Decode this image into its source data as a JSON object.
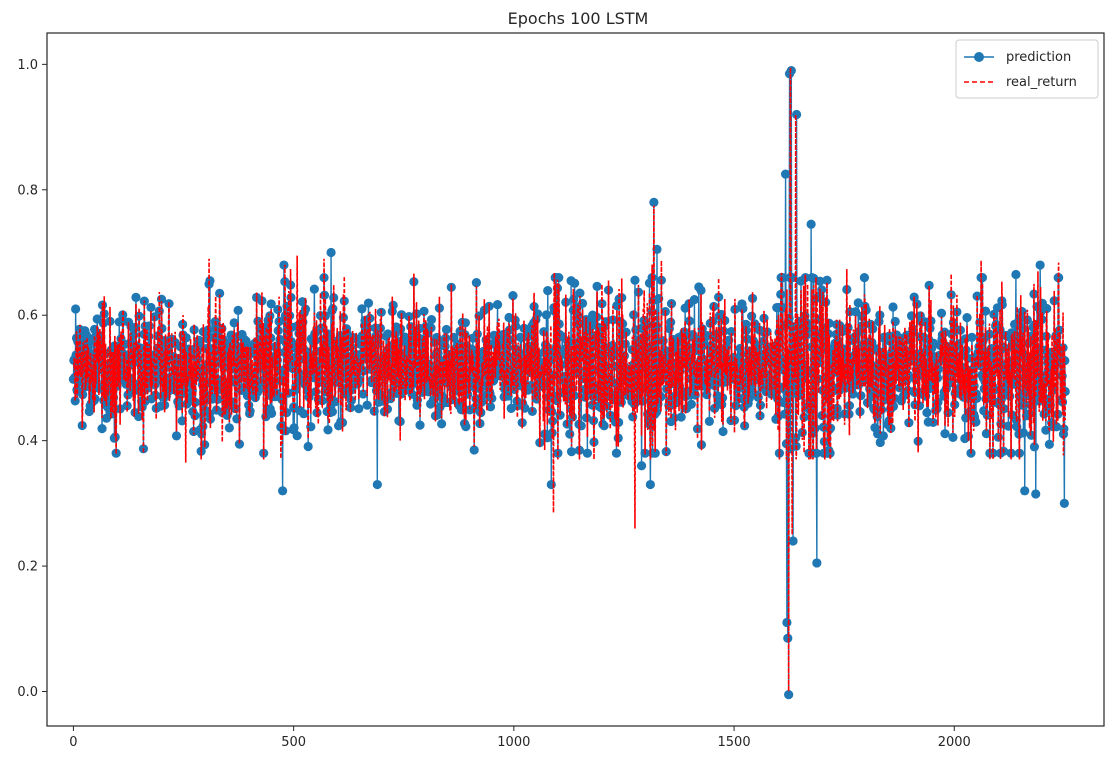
{
  "chart_data": {
    "type": "line",
    "title": "Epochs 100 LSTM",
    "xlabel": "",
    "ylabel": "",
    "xlim": [
      -60,
      2340
    ],
    "ylim": [
      -0.055,
      1.05
    ],
    "x_ticks": [
      0,
      500,
      1000,
      1500,
      2000
    ],
    "y_ticks": [
      0.0,
      0.2,
      0.4,
      0.6,
      0.8,
      1.0
    ],
    "x_tick_labels": [
      "0",
      "500",
      "1000",
      "1500",
      "2000"
    ],
    "y_tick_labels": [
      "0.0",
      "0.2",
      "0.4",
      "0.6",
      "0.8",
      "1.0"
    ],
    "grid": false,
    "legend_position": "top-right",
    "n_points": 2253,
    "x_range": [
      0,
      2252
    ],
    "series": [
      {
        "name": "prediction",
        "color": "#1f77b4",
        "line_style": "solid",
        "marker": "circle",
        "baseline": 0.52,
        "typical_range": [
          0.4,
          0.65
        ],
        "extreme_points": [
          {
            "x": 5,
            "y": 0.61
          },
          {
            "x": 310,
            "y": 0.655
          },
          {
            "x": 475,
            "y": 0.32
          },
          {
            "x": 478,
            "y": 0.68
          },
          {
            "x": 585,
            "y": 0.7
          },
          {
            "x": 690,
            "y": 0.33
          },
          {
            "x": 1085,
            "y": 0.33
          },
          {
            "x": 1130,
            "y": 0.655
          },
          {
            "x": 1290,
            "y": 0.36
          },
          {
            "x": 1310,
            "y": 0.33
          },
          {
            "x": 1318,
            "y": 0.78
          },
          {
            "x": 1325,
            "y": 0.705
          },
          {
            "x": 1420,
            "y": 0.645
          },
          {
            "x": 1617,
            "y": 0.825
          },
          {
            "x": 1620,
            "y": 0.11
          },
          {
            "x": 1622,
            "y": 0.085
          },
          {
            "x": 1624,
            "y": -0.005
          },
          {
            "x": 1626,
            "y": 0.985
          },
          {
            "x": 1630,
            "y": 0.99
          },
          {
            "x": 1634,
            "y": 0.24
          },
          {
            "x": 1642,
            "y": 0.92
          },
          {
            "x": 1675,
            "y": 0.745
          },
          {
            "x": 1688,
            "y": 0.205
          },
          {
            "x": 2140,
            "y": 0.665
          },
          {
            "x": 2160,
            "y": 0.32
          },
          {
            "x": 2185,
            "y": 0.315
          },
          {
            "x": 2195,
            "y": 0.68
          },
          {
            "x": 2250,
            "y": 0.3
          }
        ]
      },
      {
        "name": "real_return",
        "color": "#ff0000",
        "line_style": "dashed",
        "marker": "none",
        "baseline": 0.52,
        "typical_range": [
          0.42,
          0.62
        ],
        "extreme_points": [
          {
            "x": 255,
            "y": 0.365
          },
          {
            "x": 508,
            "y": 0.695
          },
          {
            "x": 1090,
            "y": 0.285
          },
          {
            "x": 1275,
            "y": 0.26
          },
          {
            "x": 1318,
            "y": 0.775
          },
          {
            "x": 1624,
            "y": 0.0
          },
          {
            "x": 1628,
            "y": 0.995
          },
          {
            "x": 1632,
            "y": 0.25
          },
          {
            "x": 1640,
            "y": 0.92
          },
          {
            "x": 2190,
            "y": 0.67
          }
        ]
      }
    ]
  }
}
